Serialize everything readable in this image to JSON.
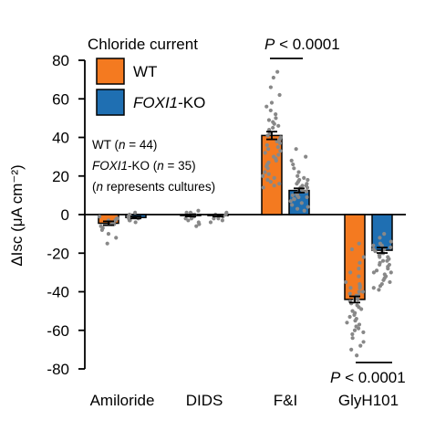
{
  "chart_data": {
    "type": "bar",
    "ylabel": "ΔIsc (μA cm⁻²)",
    "ylim": [
      -80,
      80
    ],
    "yticks": [
      80,
      60,
      40,
      20,
      0,
      -20,
      -40,
      -60,
      -80
    ],
    "ytick_labels": [
      "80",
      "60",
      "40",
      "20",
      "0",
      "-20",
      "-40",
      "-60",
      "-80"
    ],
    "categories": [
      "Amiloride",
      "DIDS",
      "F&I",
      "GlyH101"
    ],
    "legend": {
      "title": "Chloride current",
      "position": "top-left"
    },
    "series": [
      {
        "name": "WT",
        "color": "#f47a20",
        "values": [
          -4.5,
          -0.5,
          41,
          -44
        ],
        "sem": [
          1.0,
          0.5,
          2.0,
          1.6
        ],
        "points": [
          [
            -1,
            -2,
            -3,
            -4,
            -5,
            -6,
            -7,
            -8,
            -10,
            -12,
            -15,
            -3,
            -2,
            -5
          ],
          [
            0,
            -1,
            -2,
            -3,
            1,
            2,
            -4,
            -5,
            -6,
            0,
            -2,
            1
          ],
          [
            74,
            71,
            66,
            62,
            58,
            56,
            54,
            52,
            50,
            49,
            48,
            47,
            46,
            45,
            44,
            43,
            42,
            41,
            40,
            39,
            38,
            37,
            36,
            35,
            34,
            33,
            32,
            31,
            30,
            29,
            28,
            27,
            26,
            25,
            24,
            22,
            21,
            20,
            19,
            18,
            17,
            16,
            15,
            14
          ],
          [
            -15,
            -18,
            -22,
            -25,
            -28,
            -30,
            -32,
            -35,
            -37,
            -38,
            -40,
            -41,
            -42,
            -43,
            -44,
            -45,
            -46,
            -47,
            -48,
            -49,
            -50,
            -51,
            -52,
            -53,
            -54,
            -55,
            -56,
            -57,
            -58,
            -59,
            -60,
            -61,
            -62,
            -64,
            -66,
            -68,
            -70,
            -73,
            -46,
            -44,
            -42,
            -40,
            -38,
            -36
          ]
        ]
      },
      {
        "name": "FOXI1-KO",
        "name_pre": "",
        "name_italic": "FOXI1",
        "name_post": "-KO",
        "color": "#1f6fb2",
        "values": [
          -1.5,
          -0.5,
          12.5,
          -18.5
        ],
        "sem": [
          0.5,
          0.5,
          1.1,
          1.4
        ],
        "points": [
          [
            0,
            -1,
            -2,
            -3,
            -4,
            -1,
            -2,
            1,
            -3
          ],
          [
            0,
            -1,
            -2,
            -3,
            1,
            -4,
            -2,
            0
          ],
          [
            34,
            30,
            28,
            26,
            24,
            22,
            20,
            19,
            18,
            17,
            16,
            15,
            14,
            13,
            12,
            11,
            10,
            9,
            8,
            7,
            6,
            5,
            4,
            3,
            2,
            12,
            14,
            16,
            18,
            10,
            8,
            11,
            13,
            15,
            9
          ],
          [
            -10,
            -12,
            -14,
            -15,
            -16,
            -17,
            -18,
            -19,
            -20,
            -21,
            -22,
            -23,
            -24,
            -25,
            -26,
            -27,
            -28,
            -29,
            -30,
            -31,
            -32,
            -33,
            -34,
            -35,
            -36,
            -37,
            -38,
            -39,
            -16,
            -20,
            -22,
            -24,
            -26,
            -18,
            -30
          ]
        ]
      }
    ],
    "annotations": {
      "n_line1": "WT (n = 44)",
      "n_line2_italic": "FOXI1",
      "n_line2_rest": "-KO (n = 35)",
      "n_line3": "(n represents cultures)",
      "pvalue_top": "P < 0.0001",
      "pvalue_bottom": "P < 0.0001"
    }
  }
}
